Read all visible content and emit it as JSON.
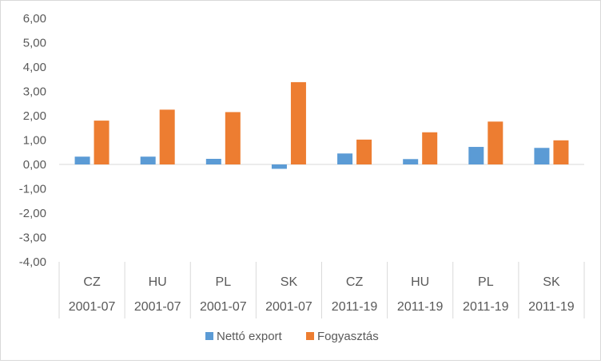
{
  "chart_data": {
    "type": "bar",
    "y_tick_labels": [
      "6,00",
      "5,00",
      "4,00",
      "3,00",
      "2,00",
      "1,00",
      "0,00",
      "-1,00",
      "-2,00",
      "-3,00",
      "-4,00"
    ],
    "ylim": [
      -4,
      6
    ],
    "y_step": 1,
    "categories": [
      {
        "country": "CZ",
        "period": "2001-07"
      },
      {
        "country": "HU",
        "period": "2001-07"
      },
      {
        "country": "PL",
        "period": "2001-07"
      },
      {
        "country": "SK",
        "period": "2001-07"
      },
      {
        "country": "CZ",
        "period": "2011-19"
      },
      {
        "country": "HU",
        "period": "2011-19"
      },
      {
        "country": "PL",
        "period": "2011-19"
      },
      {
        "country": "SK",
        "period": "2011-19"
      }
    ],
    "series": [
      {
        "name": "Nettó export",
        "color": "#5B9BD5",
        "values": [
          0.32,
          0.32,
          0.23,
          -0.18,
          0.45,
          0.22,
          0.72,
          0.68
        ]
      },
      {
        "name": "Fogyasztás",
        "color": "#ED7D31",
        "values": [
          1.8,
          2.25,
          2.15,
          3.38,
          1.02,
          1.32,
          1.76,
          0.99
        ]
      }
    ],
    "grid": false,
    "legend_position": "bottom"
  }
}
